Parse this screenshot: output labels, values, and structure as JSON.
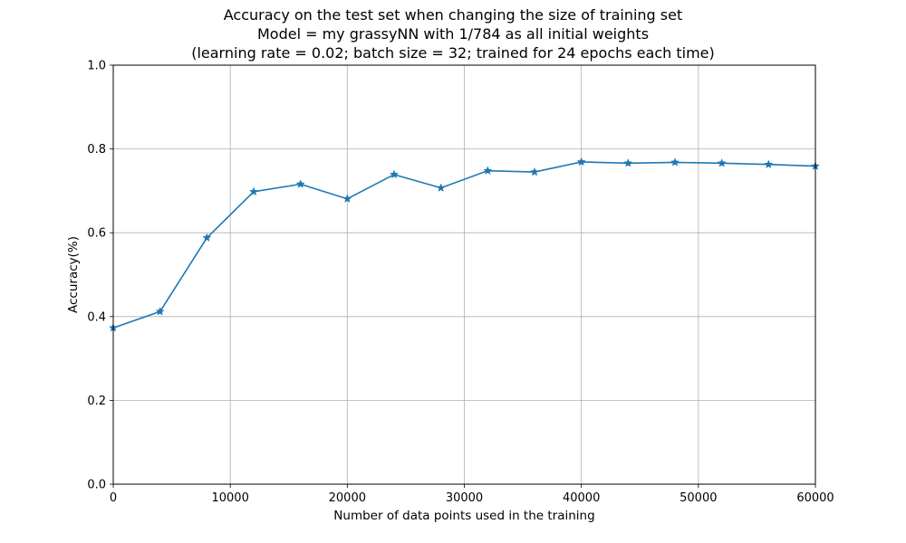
{
  "chart_data": {
    "type": "line",
    "title_lines": [
      "Accuracy on the test set when changing the size of training set",
      "Model = my grassyNN with 1/784 as all initial weights",
      "(learning rate = 0.02; batch size = 32; trained for 24 epochs each time)"
    ],
    "xlabel": "Number of data points used in the training",
    "ylabel": "Accuracy(%)",
    "xlim": [
      0,
      60000
    ],
    "ylim": [
      0.0,
      1.0
    ],
    "xticks": [
      0,
      10000,
      20000,
      30000,
      40000,
      50000,
      60000
    ],
    "xtick_labels": [
      "0",
      "10000",
      "20000",
      "30000",
      "40000",
      "50000",
      "60000"
    ],
    "yticks": [
      0.0,
      0.2,
      0.4,
      0.6,
      0.8,
      1.0
    ],
    "ytick_labels": [
      "0.0",
      "0.2",
      "0.4",
      "0.6",
      "0.8",
      "1.0"
    ],
    "grid": true,
    "marker": "star",
    "color": "#1f77b4",
    "x": [
      0,
      4000,
      8000,
      12000,
      16000,
      20000,
      24000,
      28000,
      32000,
      36000,
      40000,
      44000,
      48000,
      52000,
      56000,
      60000
    ],
    "y": [
      0.373,
      0.412,
      0.588,
      0.698,
      0.716,
      0.681,
      0.739,
      0.707,
      0.748,
      0.745,
      0.769,
      0.766,
      0.768,
      0.766,
      0.763,
      0.759
    ]
  }
}
